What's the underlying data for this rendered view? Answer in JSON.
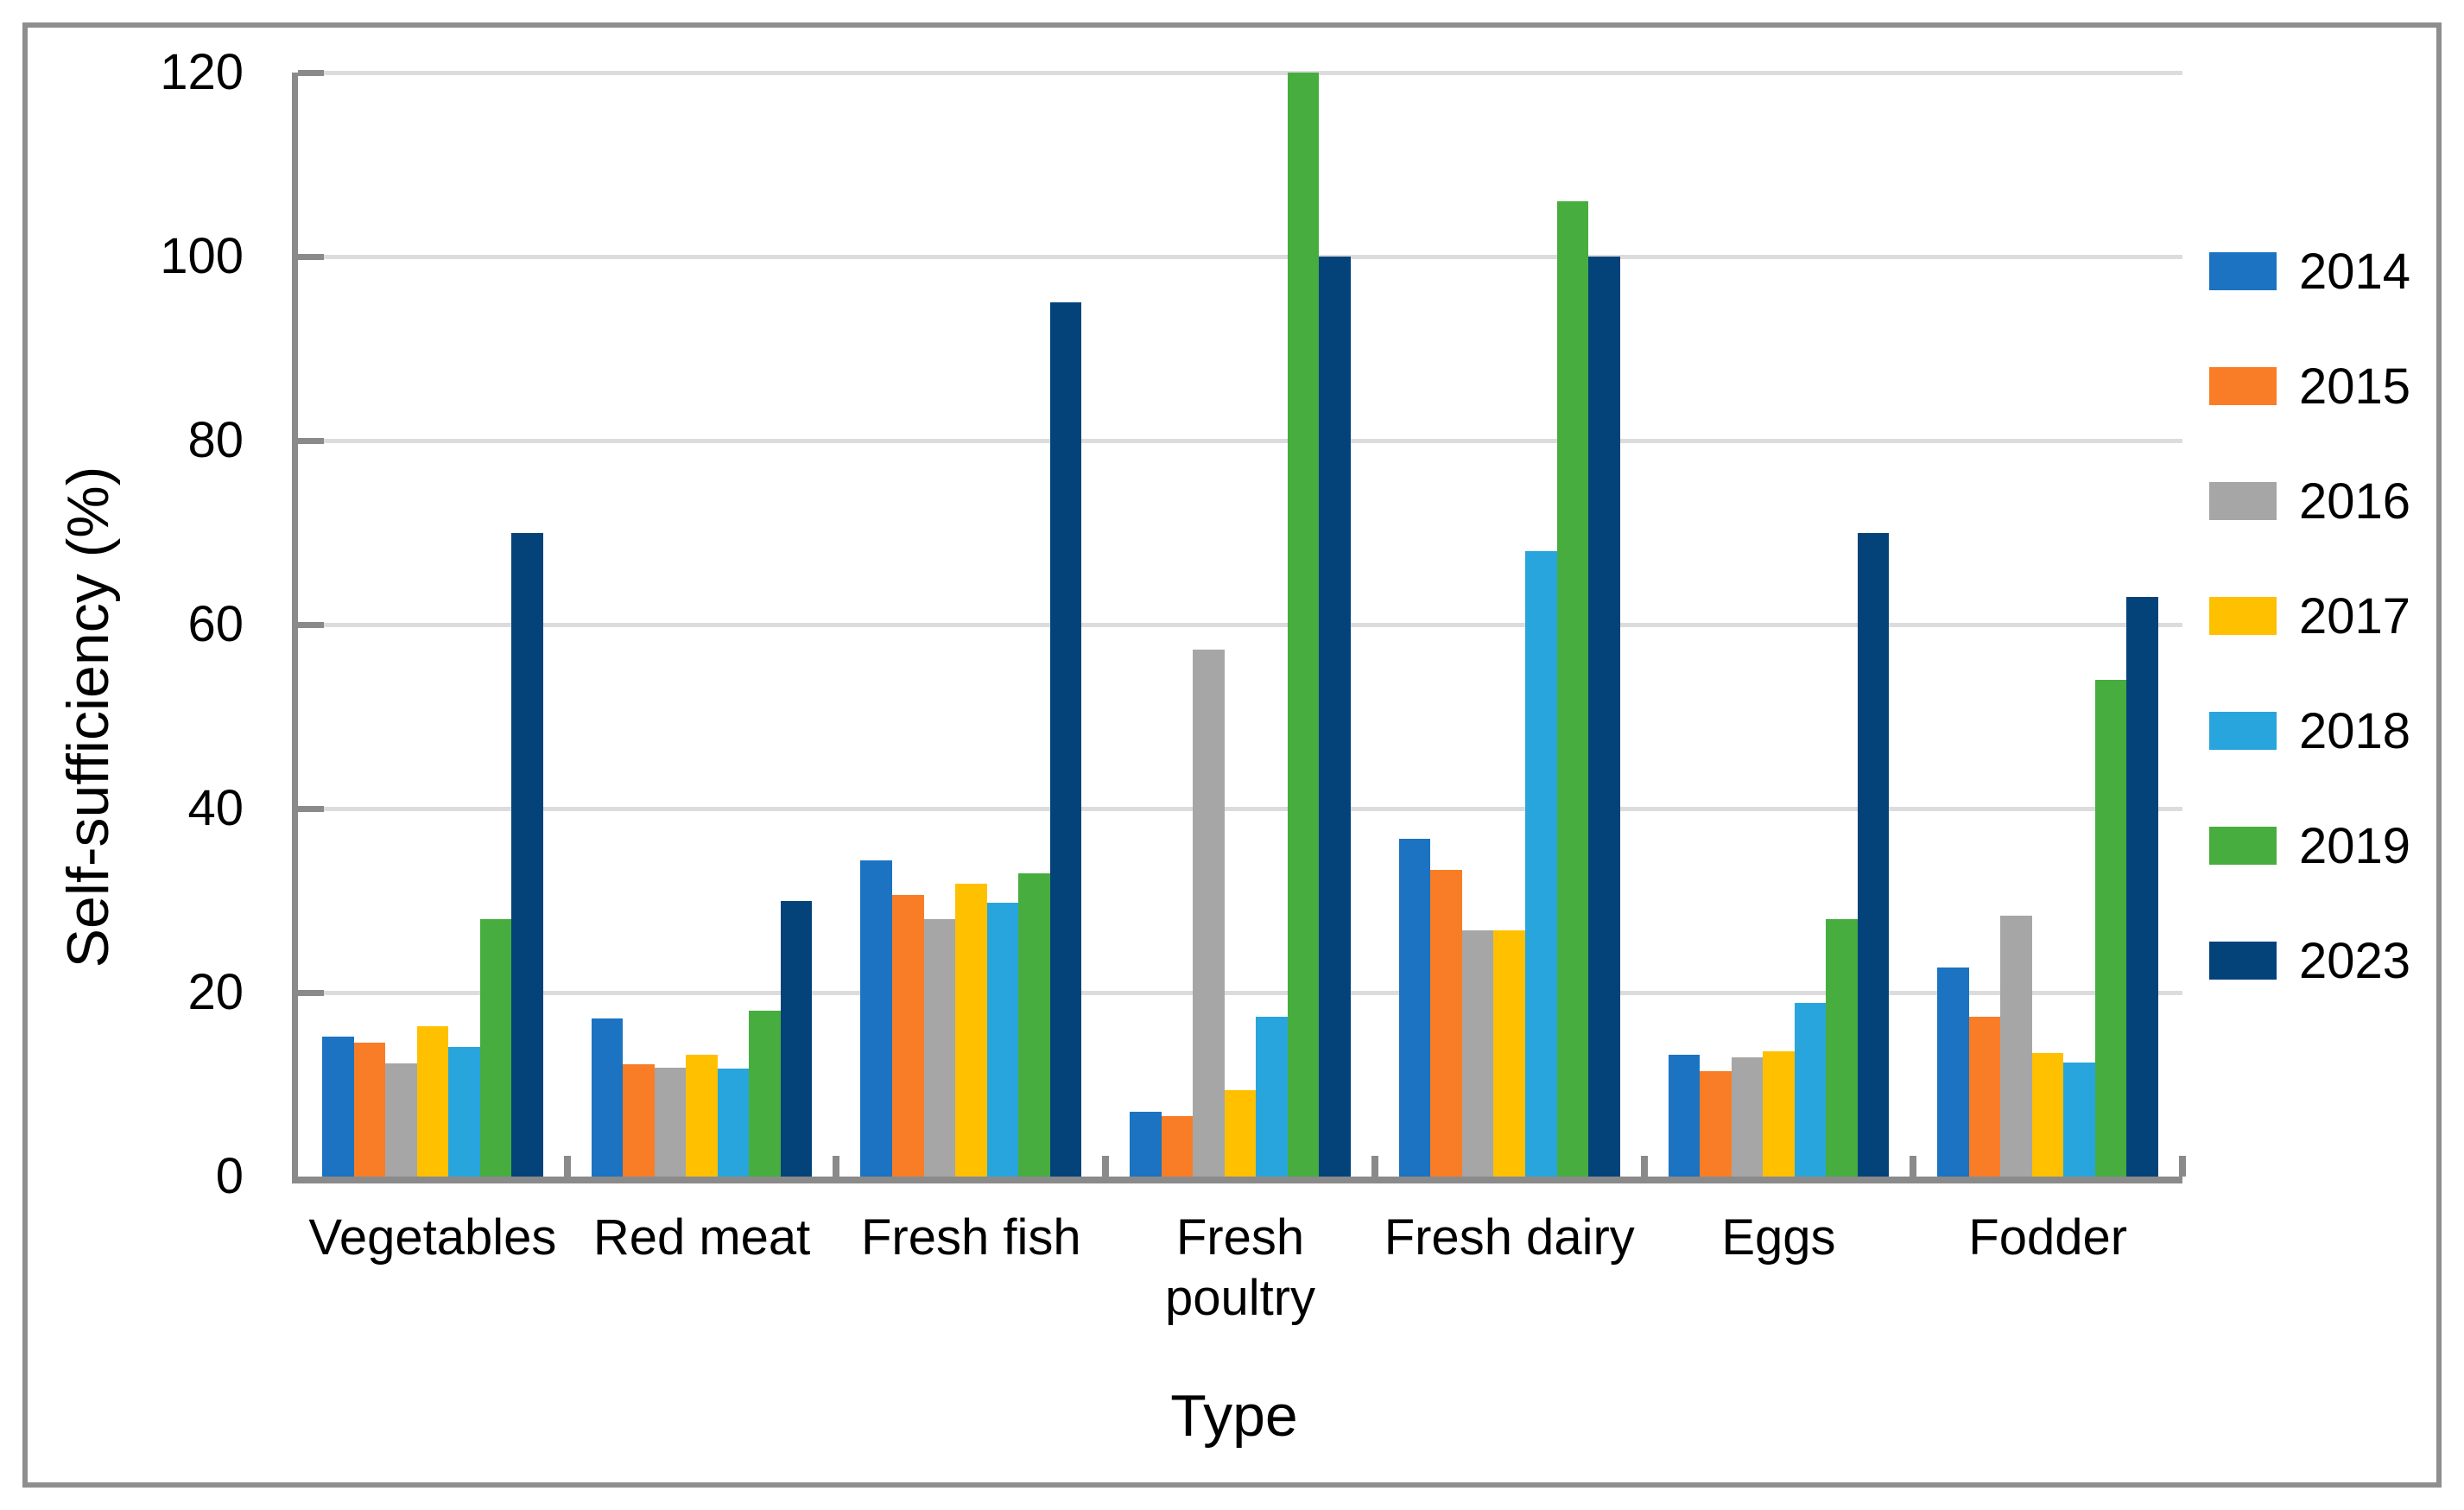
{
  "chart_data": {
    "type": "bar",
    "title": "",
    "xlabel": "Type",
    "ylabel": "Self-sufficiency (%)",
    "ylim": [
      0,
      120
    ],
    "yticks": [
      0,
      20,
      40,
      60,
      80,
      100,
      120
    ],
    "grid": true,
    "legend_position": "right",
    "categories": [
      "Vegetables",
      "Red meat",
      "Fresh fish",
      "Fresh poultry",
      "Fresh dairy",
      "Eggs",
      "Fodder"
    ],
    "series": [
      {
        "name": "2014",
        "color": "#1b73c1",
        "values": [
          15.2,
          17.2,
          34.4,
          7.0,
          36.7,
          13.2,
          22.7
        ]
      },
      {
        "name": "2015",
        "color": "#f97d27",
        "values": [
          14.6,
          12.2,
          30.6,
          6.6,
          33.3,
          11.5,
          17.4
        ]
      },
      {
        "name": "2016",
        "color": "#a6a6a6",
        "values": [
          12.3,
          11.8,
          28.0,
          57.3,
          26.8,
          13.0,
          28.4
        ]
      },
      {
        "name": "2017",
        "color": "#ffc000",
        "values": [
          16.3,
          13.2,
          31.8,
          9.4,
          26.8,
          13.6,
          13.4
        ]
      },
      {
        "name": "2018",
        "color": "#28a5dc",
        "values": [
          14.1,
          11.7,
          29.8,
          17.4,
          68.0,
          18.9,
          12.4
        ]
      },
      {
        "name": "2019",
        "color": "#47ad3f",
        "values": [
          28.0,
          18.0,
          33.0,
          120.0,
          106.0,
          28.0,
          54.0
        ]
      },
      {
        "name": "2023",
        "color": "#03437a",
        "values": [
          70.0,
          30.0,
          95.0,
          100.0,
          100.0,
          70.0,
          63.0
        ]
      }
    ]
  },
  "style_colors": {
    "axis_line": "#8a8a8a",
    "gridline": "#dcdcdc",
    "frame_border": "#8e8e8e",
    "text": "#000000"
  }
}
